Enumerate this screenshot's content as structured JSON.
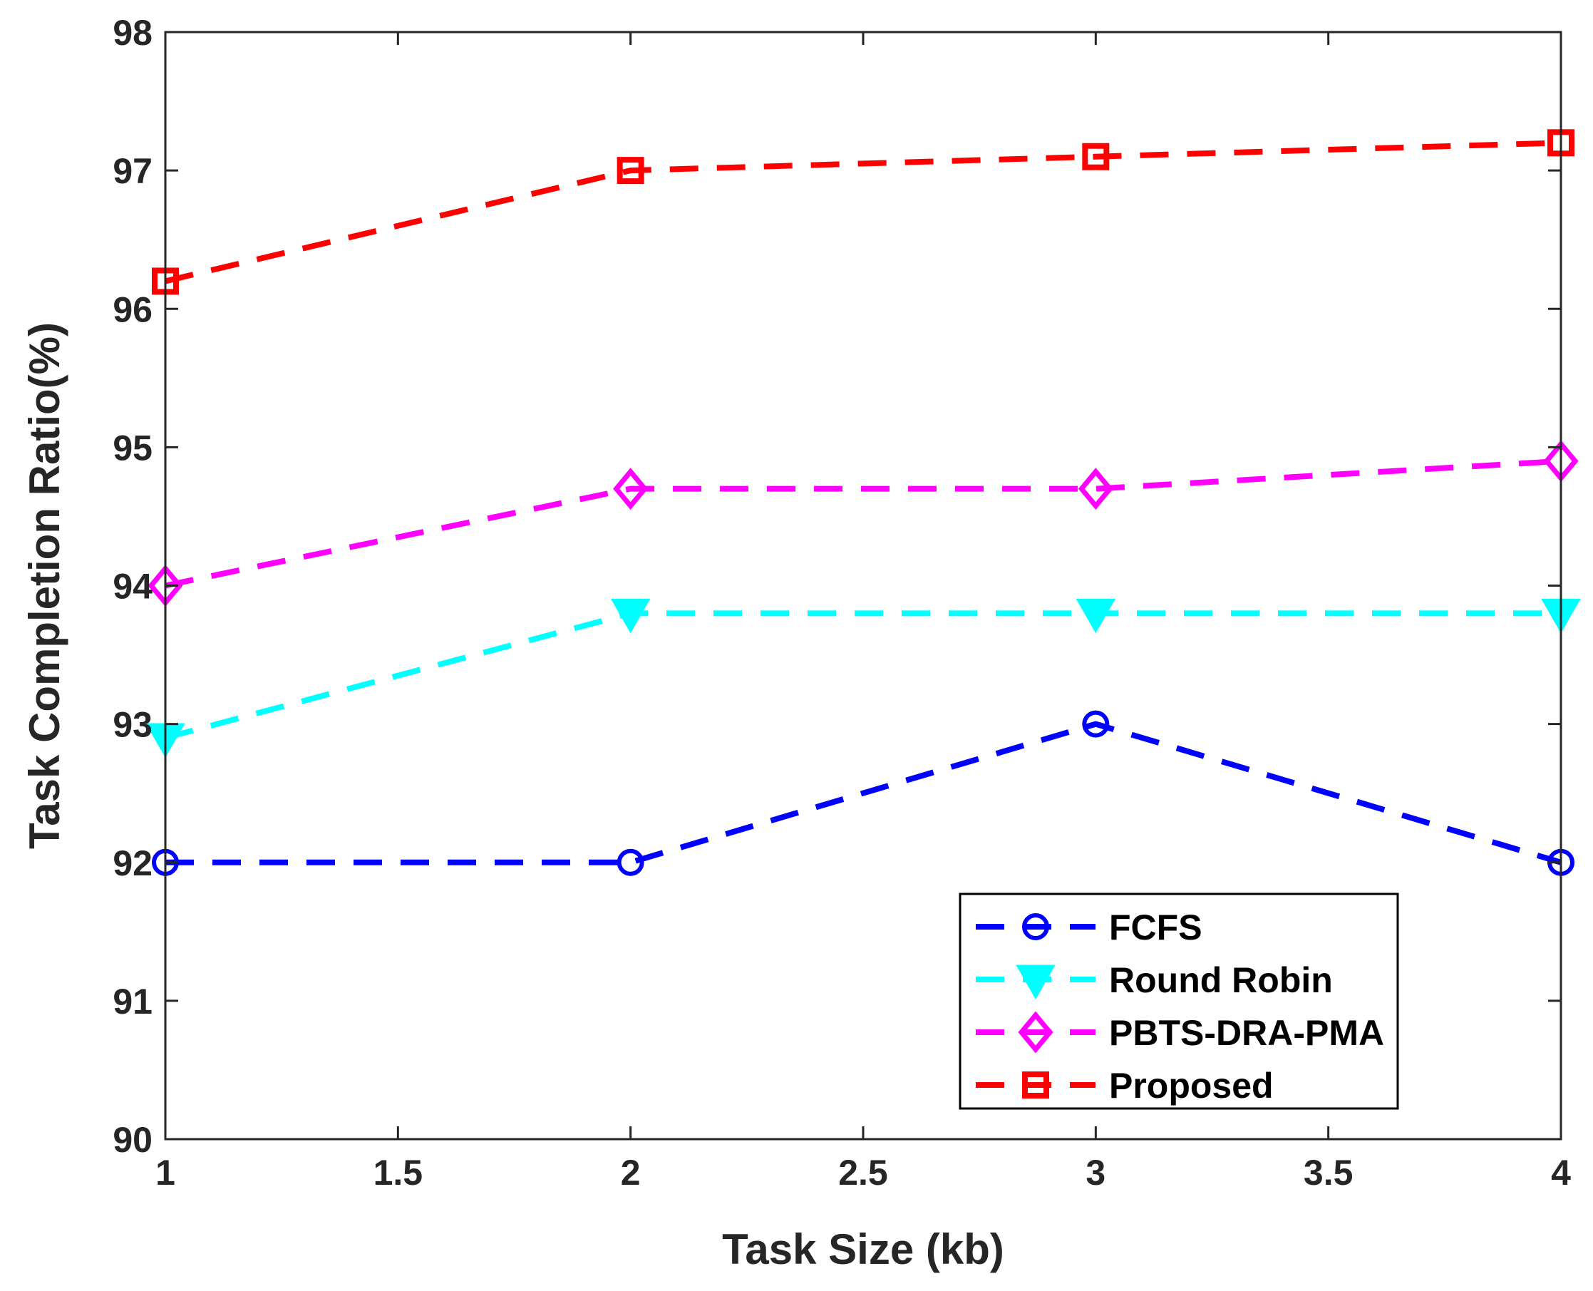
{
  "chart_data": {
    "type": "line",
    "title": "",
    "xlabel": "Task Size (kb)",
    "ylabel": "Task Completion Ratio(%)",
    "xlim": [
      1,
      4
    ],
    "ylim": [
      90,
      98
    ],
    "xticks": [
      1,
      1.5,
      2,
      2.5,
      3,
      3.5,
      4
    ],
    "xtick_labels": [
      "1",
      "1.5",
      "2",
      "2.5",
      "3",
      "3.5",
      "4"
    ],
    "yticks": [
      90,
      91,
      92,
      93,
      94,
      95,
      96,
      97,
      98
    ],
    "ytick_labels": [
      "90",
      "91",
      "92",
      "93",
      "94",
      "95",
      "96",
      "97",
      "98"
    ],
    "grid": false,
    "legend_position": "bottom-right",
    "x": [
      1,
      2,
      3,
      4
    ],
    "series": [
      {
        "name": "FCFS",
        "values": [
          92.0,
          92.0,
          93.0,
          92.0
        ],
        "color": "#0000ff",
        "marker": "circle",
        "line_style": "dashed"
      },
      {
        "name": "Round Robin",
        "values": [
          92.9,
          93.8,
          93.8,
          93.8
        ],
        "color": "#00ffff",
        "marker": "triangle-down",
        "line_style": "dashed"
      },
      {
        "name": "PBTS-DRA-PMA",
        "values": [
          94.0,
          94.7,
          94.7,
          94.9
        ],
        "color": "#ff00ff",
        "marker": "diamond",
        "line_style": "dashed"
      },
      {
        "name": "Proposed",
        "values": [
          96.2,
          97.0,
          97.1,
          97.2
        ],
        "color": "#ff0000",
        "marker": "square",
        "line_style": "dashed"
      }
    ]
  }
}
